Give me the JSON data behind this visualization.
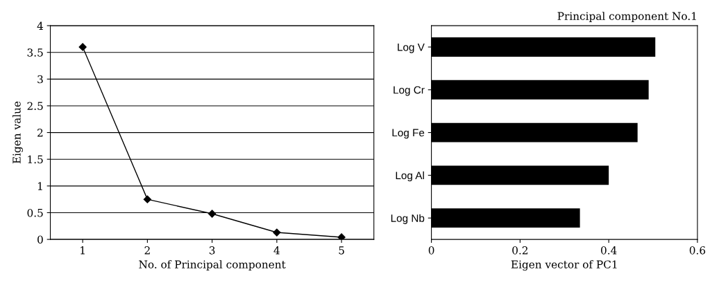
{
  "chart_data": [
    {
      "type": "line",
      "xlabel": "No. of Principal component",
      "ylabel": "Eigen value",
      "categories": [
        "1",
        "2",
        "3",
        "4",
        "5"
      ],
      "series": [
        {
          "color": "#000000",
          "values": [
            3.6,
            0.75,
            0.48,
            0.13,
            0.04
          ]
        }
      ],
      "ylim": [
        0,
        4
      ],
      "yticks": [
        0,
        0.5,
        1,
        1.5,
        2,
        2.5,
        3,
        3.5,
        4
      ],
      "grid": "y",
      "marker": "diamond",
      "line_style": "solid",
      "legend": false
    },
    {
      "type": "bar",
      "orientation": "horizontal",
      "title": "Principal component No.1",
      "xlabel": "Eigen vector of PC1",
      "categories": [
        "Log V",
        "Log Cr",
        "Log Fe",
        "Log Al",
        "Log Nb"
      ],
      "series": [
        {
          "color": "#000000",
          "values": [
            0.505,
            0.49,
            0.465,
            0.4,
            0.335
          ]
        }
      ],
      "xlim": [
        0,
        0.6
      ],
      "xticks": [
        0,
        0.2,
        0.4,
        0.6
      ],
      "grid": false,
      "legend": false
    }
  ]
}
